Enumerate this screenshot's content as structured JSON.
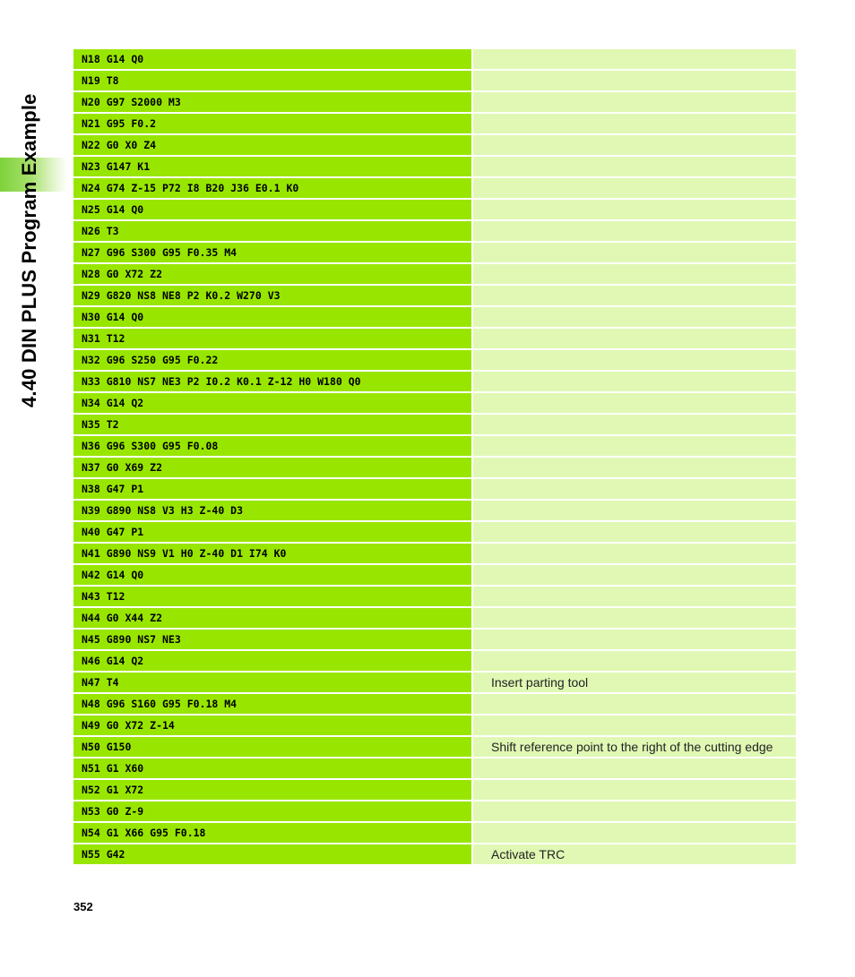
{
  "side_title": "4.40 DIN PLUS Program Example",
  "page_number": "352",
  "rows": [
    {
      "code": "N18 G14 Q0",
      "comment": ""
    },
    {
      "code": "N19 T8",
      "comment": ""
    },
    {
      "code": "N20 G97 S2000 M3",
      "comment": ""
    },
    {
      "code": "N21 G95 F0.2",
      "comment": ""
    },
    {
      "code": "N22 G0 X0 Z4",
      "comment": ""
    },
    {
      "code": "N23 G147 K1",
      "comment": ""
    },
    {
      "code": "N24 G74 Z-15 P72 I8 B20 J36 E0.1 K0",
      "comment": ""
    },
    {
      "code": "N25 G14 Q0",
      "comment": ""
    },
    {
      "code": "N26 T3",
      "comment": ""
    },
    {
      "code": "N27 G96 S300 G95 F0.35 M4",
      "comment": ""
    },
    {
      "code": "N28 G0 X72 Z2",
      "comment": ""
    },
    {
      "code": "N29 G820 NS8 NE8 P2 K0.2 W270 V3",
      "comment": ""
    },
    {
      "code": "N30 G14 Q0",
      "comment": ""
    },
    {
      "code": "N31 T12",
      "comment": ""
    },
    {
      "code": "N32 G96 S250 G95 F0.22",
      "comment": ""
    },
    {
      "code": "N33 G810 NS7 NE3 P2 I0.2 K0.1 Z-12 H0 W180 Q0",
      "comment": ""
    },
    {
      "code": "N34 G14 Q2",
      "comment": ""
    },
    {
      "code": "N35 T2",
      "comment": ""
    },
    {
      "code": "N36 G96 S300 G95 F0.08",
      "comment": ""
    },
    {
      "code": "N37 G0 X69 Z2",
      "comment": ""
    },
    {
      "code": "N38 G47 P1",
      "comment": ""
    },
    {
      "code": "N39 G890 NS8 V3 H3 Z-40 D3",
      "comment": ""
    },
    {
      "code": "N40 G47 P1",
      "comment": ""
    },
    {
      "code": "N41 G890 NS9 V1 H0 Z-40 D1 I74 K0",
      "comment": ""
    },
    {
      "code": "N42 G14 Q0",
      "comment": ""
    },
    {
      "code": "N43 T12",
      "comment": ""
    },
    {
      "code": "N44 G0 X44 Z2",
      "comment": ""
    },
    {
      "code": "N45 G890 NS7 NE3",
      "comment": ""
    },
    {
      "code": "N46 G14 Q2",
      "comment": ""
    },
    {
      "code": "N47 T4",
      "comment": "Insert parting tool"
    },
    {
      "code": "N48 G96 S160 G95 F0.18 M4",
      "comment": ""
    },
    {
      "code": "N49 G0 X72 Z-14",
      "comment": ""
    },
    {
      "code": "N50 G150",
      "comment": "Shift reference point to the right of the cutting edge"
    },
    {
      "code": "N51 G1 X60",
      "comment": ""
    },
    {
      "code": "N52 G1 X72",
      "comment": ""
    },
    {
      "code": "N53 G0 Z-9",
      "comment": ""
    },
    {
      "code": "N54 G1 X66 G95 F0.18",
      "comment": ""
    },
    {
      "code": "N55 G42",
      "comment": "Activate TRC"
    }
  ]
}
